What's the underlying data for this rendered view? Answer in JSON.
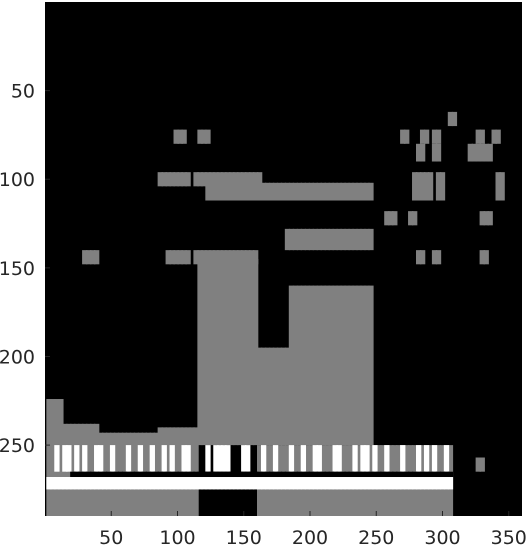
{
  "chart_data": {
    "type": "heatmap",
    "title": "",
    "xlabel": "",
    "ylabel": "",
    "xlim": [
      0,
      360
    ],
    "ylim": [
      290,
      0
    ],
    "y_axis_inverted": true,
    "grid": false,
    "colormap": [
      "#000000",
      "#808080",
      "#ffffff"
    ],
    "background_value": 0,
    "x_ticks": [
      50,
      100,
      150,
      200,
      250,
      300,
      350
    ],
    "y_ticks": [
      50,
      100,
      150,
      200,
      250
    ],
    "cell_width": 4,
    "column_stride": 5,
    "clusters": [
      {
        "value": 1,
        "x": [
          1,
          4,
          7,
          10
        ],
        "y_ranges": [
          [
            224,
            290
          ]
        ]
      },
      {
        "value": 1,
        "x": [
          13,
          16,
          19,
          22,
          25,
          28,
          31,
          34,
          37
        ],
        "y_ranges": [
          [
            238,
            290
          ]
        ]
      },
      {
        "value": 1,
        "x": [
          40,
          43,
          46,
          49,
          52,
          55,
          58,
          61,
          64,
          67,
          70,
          73,
          76,
          79,
          82
        ],
        "y_ranges": [
          [
            243,
            290
          ]
        ]
      },
      {
        "value": 1,
        "x": [
          85,
          88,
          91,
          94,
          97,
          100,
          103,
          106,
          109,
          112
        ],
        "y_ranges": [
          [
            240,
            290
          ]
        ]
      },
      {
        "value": 1,
        "x": [
          115,
          118,
          121,
          124,
          127,
          130,
          133,
          136,
          139,
          142,
          145,
          148,
          151,
          154,
          157
        ],
        "y_ranges": [
          [
            145,
            250
          ]
        ]
      },
      {
        "value": 1,
        "x": [
          160,
          163,
          166,
          169,
          172,
          175,
          178,
          181
        ],
        "y_ranges": [
          [
            195,
            250
          ]
        ]
      },
      {
        "value": 1,
        "x": [
          184,
          187,
          190,
          193,
          196,
          199,
          202,
          205,
          208,
          211,
          214,
          217,
          220,
          223,
          226,
          229,
          232,
          235,
          238,
          241,
          244
        ],
        "y_ranges": [
          [
            160,
            250
          ]
        ]
      },
      {
        "value": 1,
        "x": [
          160,
          163,
          166,
          169,
          172,
          175,
          178,
          181,
          184,
          187,
          190,
          193,
          196,
          199,
          202,
          205,
          208,
          211,
          214,
          217,
          220,
          223,
          226,
          229,
          232,
          235,
          238,
          241,
          244,
          247,
          250,
          253,
          256,
          259,
          262,
          265,
          268,
          271,
          274,
          277,
          280,
          283,
          286,
          289,
          292,
          295,
          298,
          301,
          304
        ],
        "y_ranges": [
          [
            250,
            290
          ]
        ]
      },
      {
        "value": 1,
        "x": [
          325,
          328
        ],
        "y_ranges": [
          [
            257,
            265
          ]
        ]
      },
      {
        "value": 1,
        "x": [
          304,
          307
        ],
        "y_ranges": [
          [
            62,
            70
          ]
        ]
      },
      {
        "value": 1,
        "x": [
          268,
          271,
          283,
          286,
          292,
          295,
          325,
          328,
          337,
          340
        ],
        "y_ranges": [
          [
            72,
            80
          ]
        ]
      },
      {
        "value": 1,
        "x": [
          280,
          283,
          292,
          295,
          319,
          322,
          325,
          328,
          331,
          334
        ],
        "y_ranges": [
          [
            80,
            90
          ]
        ]
      },
      {
        "value": 1,
        "x": [
          277,
          280,
          283,
          286,
          289,
          295,
          298,
          340,
          343
        ],
        "y_ranges": [
          [
            96,
            112
          ]
        ]
      },
      {
        "value": 1,
        "x": [
          256,
          259,
          262,
          274,
          277,
          328,
          331,
          334
        ],
        "y_ranges": [
          [
            118,
            126
          ]
        ]
      },
      {
        "value": 1,
        "x": [
          280,
          283,
          292,
          295,
          328,
          331
        ],
        "y_ranges": [
          [
            140,
            148
          ]
        ]
      },
      {
        "value": 1,
        "x": [
          97,
          100,
          103,
          115,
          118,
          121
        ],
        "y_ranges": [
          [
            72,
            80
          ]
        ]
      },
      {
        "value": 1,
        "x": [
          85,
          88,
          91,
          94,
          97,
          100,
          103,
          106,
          112,
          115,
          118,
          121,
          124,
          127,
          130,
          133,
          136,
          139,
          142,
          145,
          148,
          151,
          154,
          157,
          160
        ],
        "y_ranges": [
          [
            96,
            104
          ]
        ]
      },
      {
        "value": 1,
        "x": [
          121,
          124,
          127,
          130,
          133,
          136,
          139,
          142,
          145,
          148,
          151,
          154,
          157,
          160,
          163,
          166,
          169,
          172,
          175,
          178,
          181,
          184,
          187,
          190,
          193,
          196,
          199,
          202,
          205,
          208,
          211,
          214,
          217,
          220,
          223,
          226,
          229,
          232,
          235,
          238,
          241,
          244
        ],
        "y_ranges": [
          [
            102,
            112
          ]
        ]
      },
      {
        "value": 1,
        "x": [
          181,
          184,
          187,
          190,
          193,
          196,
          199,
          202,
          205,
          208,
          211,
          214,
          217,
          220,
          223,
          226,
          229,
          232,
          235,
          238,
          241,
          244
        ],
        "y_ranges": [
          [
            128,
            140
          ]
        ]
      },
      {
        "value": 1,
        "x": [
          91,
          94,
          97,
          100,
          103,
          106,
          112,
          115,
          118,
          121,
          124,
          127,
          130,
          133,
          136,
          139,
          142,
          145,
          148,
          151,
          154,
          157
        ],
        "y_ranges": [
          [
            140,
            148
          ]
        ]
      },
      {
        "value": 1,
        "x": [
          28,
          31,
          34,
          37
        ],
        "y_ranges": [
          [
            140,
            148
          ]
        ]
      },
      {
        "value": 2,
        "x": [
          7,
          13,
          16,
          22,
          28,
          37,
          40,
          49,
          61,
          70,
          79,
          88,
          94,
          103,
          106,
          121,
          127,
          130,
          133,
          136,
          148,
          151,
          163,
          172,
          184,
          193,
          202,
          205,
          217,
          220,
          232,
          238,
          241,
          247,
          256,
          268,
          280,
          286,
          292,
          301
        ],
        "y_ranges": [
          [
            250,
            265
          ]
        ]
      },
      {
        "value": 2,
        "x": [
          1,
          4,
          7,
          10,
          13,
          16,
          19,
          22,
          25,
          28,
          31,
          34,
          37,
          40,
          43,
          46,
          49,
          52,
          55,
          58,
          61,
          64,
          67,
          70,
          73,
          76,
          79,
          82,
          85,
          88,
          91,
          94,
          97,
          100,
          103,
          106,
          109,
          112,
          115,
          118,
          121,
          124,
          127,
          130,
          133,
          136,
          139,
          142,
          145,
          148,
          151,
          154,
          157,
          160,
          163,
          166,
          169,
          172,
          175,
          178,
          181,
          184,
          187,
          190,
          193,
          196,
          199,
          202,
          205,
          208,
          211,
          214,
          217,
          220,
          223,
          226,
          229,
          232,
          235,
          238,
          241,
          244,
          247,
          250,
          253,
          256,
          259,
          262,
          265,
          268,
          271,
          274,
          277,
          280,
          283,
          286,
          289,
          292,
          295,
          298,
          301,
          304
        ],
        "y_ranges": [
          [
            268,
            275
          ]
        ]
      },
      {
        "value": 0,
        "x": [
          19,
          22,
          25,
          28,
          31,
          34,
          37,
          40,
          43,
          46,
          49,
          52,
          55,
          58,
          61,
          64,
          67,
          70,
          73,
          76,
          79,
          82,
          85,
          88,
          91,
          94,
          97,
          100,
          103,
          106,
          109,
          112,
          115,
          118,
          121,
          124,
          127,
          130,
          133,
          136,
          139,
          142,
          145,
          148,
          151,
          154,
          157,
          160,
          163,
          166,
          169,
          172,
          175,
          178,
          181,
          184,
          187,
          190,
          193,
          196,
          199,
          202,
          205,
          208,
          211,
          214,
          217,
          220,
          223,
          226,
          229,
          232,
          235,
          238,
          241,
          244,
          247,
          250,
          253,
          256,
          259,
          262,
          265,
          268,
          271,
          274,
          277,
          280,
          283,
          286,
          289,
          292,
          295,
          298,
          301,
          304
        ],
        "y_ranges": [
          [
            265,
            268
          ]
        ]
      }
    ]
  }
}
